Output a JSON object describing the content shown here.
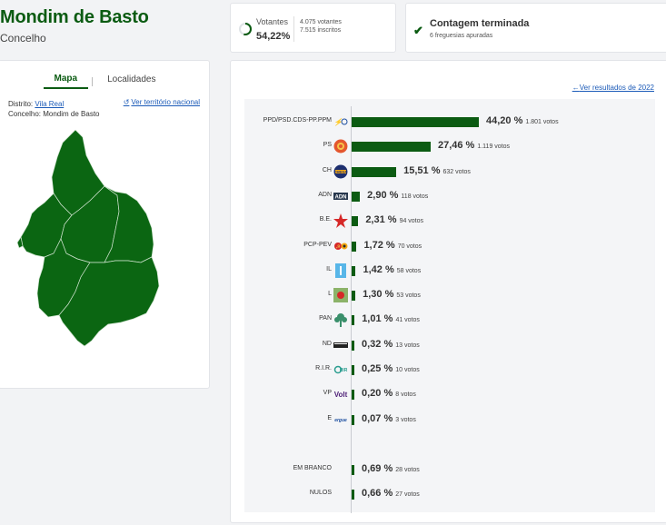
{
  "header": {
    "title": "Mondim de Basto",
    "subtitle": "Concelho"
  },
  "map_card": {
    "tabs": [
      "Mapa",
      "Localidades"
    ],
    "district_label": "Distrito:",
    "district_value": "Vila Real",
    "county_label": "Concelho: Mondim de Basto",
    "national_link": "Ver território nacional",
    "colors": {
      "map_fill": "#0b6612",
      "accent": "#0b5b12"
    }
  },
  "turnout": {
    "label": "Votantes",
    "percent": "54,22%",
    "voters": "4.075 votantes",
    "registered": "7.515 inscritos",
    "fraction": 0.5422
  },
  "count": {
    "title": "Contagem terminada",
    "subtitle": "6 freguesias apuradas"
  },
  "results": {
    "previous_link": "Ver resultados de 2022",
    "parties": [
      {
        "name": "PPD/PSD.CDS-PP.PPM",
        "pct": "44,20 %",
        "votes": "1.801 votos",
        "value": 44.2,
        "icon": "ad-logo-icon"
      },
      {
        "name": "PS",
        "pct": "27,46 %",
        "votes": "1.119 votos",
        "value": 27.46,
        "icon": "ps-logo-icon"
      },
      {
        "name": "CH",
        "pct": "15,51 %",
        "votes": "632 votos",
        "value": 15.51,
        "icon": "chega-logo-icon"
      },
      {
        "name": "ADN",
        "pct": "2,90 %",
        "votes": "118 votos",
        "value": 2.9,
        "icon": "adn-logo-icon"
      },
      {
        "name": "B.E.",
        "pct": "2,31 %",
        "votes": "94 votos",
        "value": 2.31,
        "icon": "be-star-icon"
      },
      {
        "name": "PCP-PEV",
        "pct": "1,72 %",
        "votes": "70 votos",
        "value": 1.72,
        "icon": "cdu-logo-icon"
      },
      {
        "name": "IL",
        "pct": "1,42 %",
        "votes": "58 votos",
        "value": 1.42,
        "icon": "il-logo-icon"
      },
      {
        "name": "L",
        "pct": "1,30 %",
        "votes": "53 votos",
        "value": 1.3,
        "icon": "livre-logo-icon"
      },
      {
        "name": "PAN",
        "pct": "1,01 %",
        "votes": "41 votos",
        "value": 1.01,
        "icon": "pan-tree-icon"
      },
      {
        "name": "ND",
        "pct": "0,32 %",
        "votes": "13 votos",
        "value": 0.32,
        "icon": "nd-logo-icon"
      },
      {
        "name": "R.I.R.",
        "pct": "0,25 %",
        "votes": "10 votos",
        "value": 0.25,
        "icon": "rir-logo-icon"
      },
      {
        "name": "VP",
        "pct": "0,20 %",
        "votes": "8 votos",
        "value": 0.2,
        "icon": "volt-logo-icon"
      },
      {
        "name": "E",
        "pct": "0,07 %",
        "votes": "3 votos",
        "value": 0.07,
        "icon": "ergue-te-logo-icon"
      }
    ],
    "others": [
      {
        "name": "EM BRANCO",
        "pct": "0,69 %",
        "votes": "28 votos",
        "value": 0.69
      },
      {
        "name": "NULOS",
        "pct": "0,66 %",
        "votes": "27 votos",
        "value": 0.66
      }
    ]
  },
  "chart_data": {
    "type": "bar",
    "categories": [
      "PPD/PSD.CDS-PP.PPM",
      "PS",
      "CH",
      "ADN",
      "B.E.",
      "PCP-PEV",
      "IL",
      "L",
      "PAN",
      "ND",
      "R.I.R.",
      "VP",
      "E",
      "EM BRANCO",
      "NULOS"
    ],
    "values": [
      44.2,
      27.46,
      15.51,
      2.9,
      2.31,
      1.72,
      1.42,
      1.3,
      1.01,
      0.32,
      0.25,
      0.2,
      0.07,
      0.69,
      0.66
    ],
    "votes": [
      1801,
      1119,
      632,
      118,
      94,
      70,
      58,
      53,
      41,
      13,
      10,
      8,
      3,
      28,
      27
    ],
    "orientation": "horizontal",
    "bar_color": "#0b5b12",
    "grid": false
  }
}
